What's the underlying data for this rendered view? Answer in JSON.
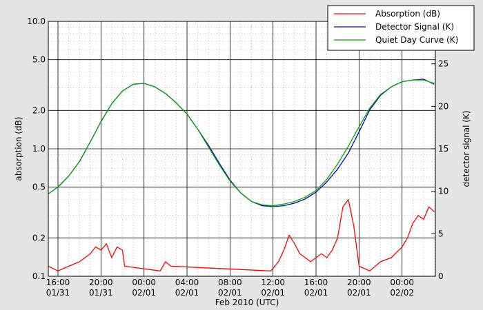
{
  "chart_data": {
    "type": "line",
    "xlabel": "Feb 2010 (UTC)",
    "ylabel_left": "absorption (dB)",
    "ylabel_right": "detector signal (K)",
    "y_left_scale": "log",
    "y_left_range": [
      0.1,
      10.0
    ],
    "y_left_ticks": [
      {
        "value": 0.1,
        "label": "0.1"
      },
      {
        "value": 0.2,
        "label": "0.2"
      },
      {
        "value": 0.5,
        "label": "0.5"
      },
      {
        "value": 1.0,
        "label": "1.0"
      },
      {
        "value": 2.0,
        "label": "2.0"
      },
      {
        "value": 5.0,
        "label": "5.0"
      },
      {
        "value": 10.0,
        "label": "10.0"
      }
    ],
    "y_right_range": [
      0,
      30
    ],
    "y_right_ticks": [
      0,
      5,
      10,
      15,
      20,
      25
    ],
    "x_range_hours": [
      -8.9,
      27.1
    ],
    "x_ticks": [
      {
        "hour": -8,
        "line1": "16:00",
        "line2": "01/31"
      },
      {
        "hour": -4,
        "line1": "20:00",
        "line2": "01/31"
      },
      {
        "hour": 0,
        "line1": "00:00",
        "line2": "02/01"
      },
      {
        "hour": 4,
        "line1": "04:00",
        "line2": "02/01"
      },
      {
        "hour": 8,
        "line1": "08:00",
        "line2": "02/01"
      },
      {
        "hour": 12,
        "line1": "12:00",
        "line2": "02/01"
      },
      {
        "hour": 16,
        "line1": "16:00",
        "line2": "02/01"
      },
      {
        "hour": 20,
        "line1": "20:00",
        "line2": "02/01"
      },
      {
        "hour": 24,
        "line1": "00:00",
        "line2": "02/02"
      }
    ],
    "grid": true,
    "legend_position": "top-right",
    "series": [
      {
        "name": "Absorption (dB)",
        "color": "#ff0000",
        "axis": "left",
        "x": [
          -8.9,
          -8.0,
          -7.0,
          -6.0,
          -5.0,
          -4.5,
          -4.0,
          -3.5,
          -3.0,
          -2.5,
          -2.0,
          -1.8,
          1.5,
          2.0,
          2.5,
          11.8,
          12.5,
          13.0,
          13.5,
          14.0,
          14.5,
          15.0,
          15.5,
          16.0,
          16.5,
          17.0,
          17.5,
          18.0,
          18.5,
          19.0,
          19.5,
          20.0,
          21.0,
          22.0,
          23.0,
          24.0,
          24.5,
          25.0,
          25.5,
          26.0,
          26.5,
          27.0
        ],
        "y": [
          0.12,
          0.11,
          0.12,
          0.13,
          0.15,
          0.17,
          0.16,
          0.18,
          0.14,
          0.17,
          0.16,
          0.12,
          0.11,
          0.13,
          0.12,
          0.11,
          0.13,
          0.16,
          0.21,
          0.18,
          0.15,
          0.14,
          0.13,
          0.14,
          0.15,
          0.14,
          0.16,
          0.2,
          0.35,
          0.4,
          0.25,
          0.12,
          0.11,
          0.13,
          0.14,
          0.17,
          0.2,
          0.26,
          0.3,
          0.28,
          0.35,
          0.32
        ]
      },
      {
        "name": "Detector Signal (K)",
        "color": "#0000cc",
        "axis": "right",
        "x": [
          -8.9,
          -8.0,
          -7.0,
          -6.0,
          -5.0,
          -4.0,
          -3.0,
          -2.0,
          -1.0,
          0.0,
          1.0,
          2.0,
          3.0,
          4.0,
          5.0,
          6.0,
          7.0,
          8.0,
          9.0,
          10.0,
          11.0,
          12.0,
          13.0,
          14.0,
          15.0,
          16.0,
          17.0,
          18.0,
          19.0,
          20.0,
          21.0,
          22.0,
          23.0,
          24.0,
          25.0,
          26.0,
          27.0
        ],
        "y": [
          9.7,
          10.5,
          11.8,
          13.5,
          15.8,
          18.2,
          20.3,
          21.8,
          22.6,
          22.7,
          22.3,
          21.5,
          20.4,
          19.1,
          17.3,
          15.4,
          13.3,
          11.3,
          9.8,
          8.8,
          8.3,
          8.2,
          8.3,
          8.6,
          9.1,
          9.9,
          11.1,
          12.6,
          14.5,
          17.0,
          19.6,
          21.3,
          22.3,
          22.9,
          23.1,
          23.2,
          22.6
        ]
      },
      {
        "name": "Quiet Day Curve (K)",
        "color": "#00aa00",
        "axis": "right",
        "x": [
          -8.9,
          -8.0,
          -7.0,
          -6.0,
          -5.0,
          -4.0,
          -3.0,
          -2.0,
          -1.0,
          0.0,
          1.0,
          2.0,
          3.0,
          4.0,
          5.0,
          6.0,
          7.0,
          8.0,
          9.0,
          10.0,
          11.0,
          12.0,
          13.0,
          14.0,
          15.0,
          16.0,
          17.0,
          18.0,
          19.0,
          20.0,
          21.0,
          22.0,
          23.0,
          24.0,
          25.0,
          26.0,
          27.0
        ],
        "y": [
          9.7,
          10.5,
          11.8,
          13.5,
          15.8,
          18.2,
          20.3,
          21.8,
          22.6,
          22.7,
          22.3,
          21.5,
          20.4,
          19.1,
          17.3,
          15.2,
          13.1,
          11.2,
          9.8,
          8.8,
          8.4,
          8.3,
          8.5,
          8.8,
          9.3,
          10.1,
          11.4,
          13.2,
          15.3,
          17.6,
          19.8,
          21.4,
          22.3,
          22.9,
          23.1,
          23.1,
          22.7
        ]
      }
    ]
  }
}
